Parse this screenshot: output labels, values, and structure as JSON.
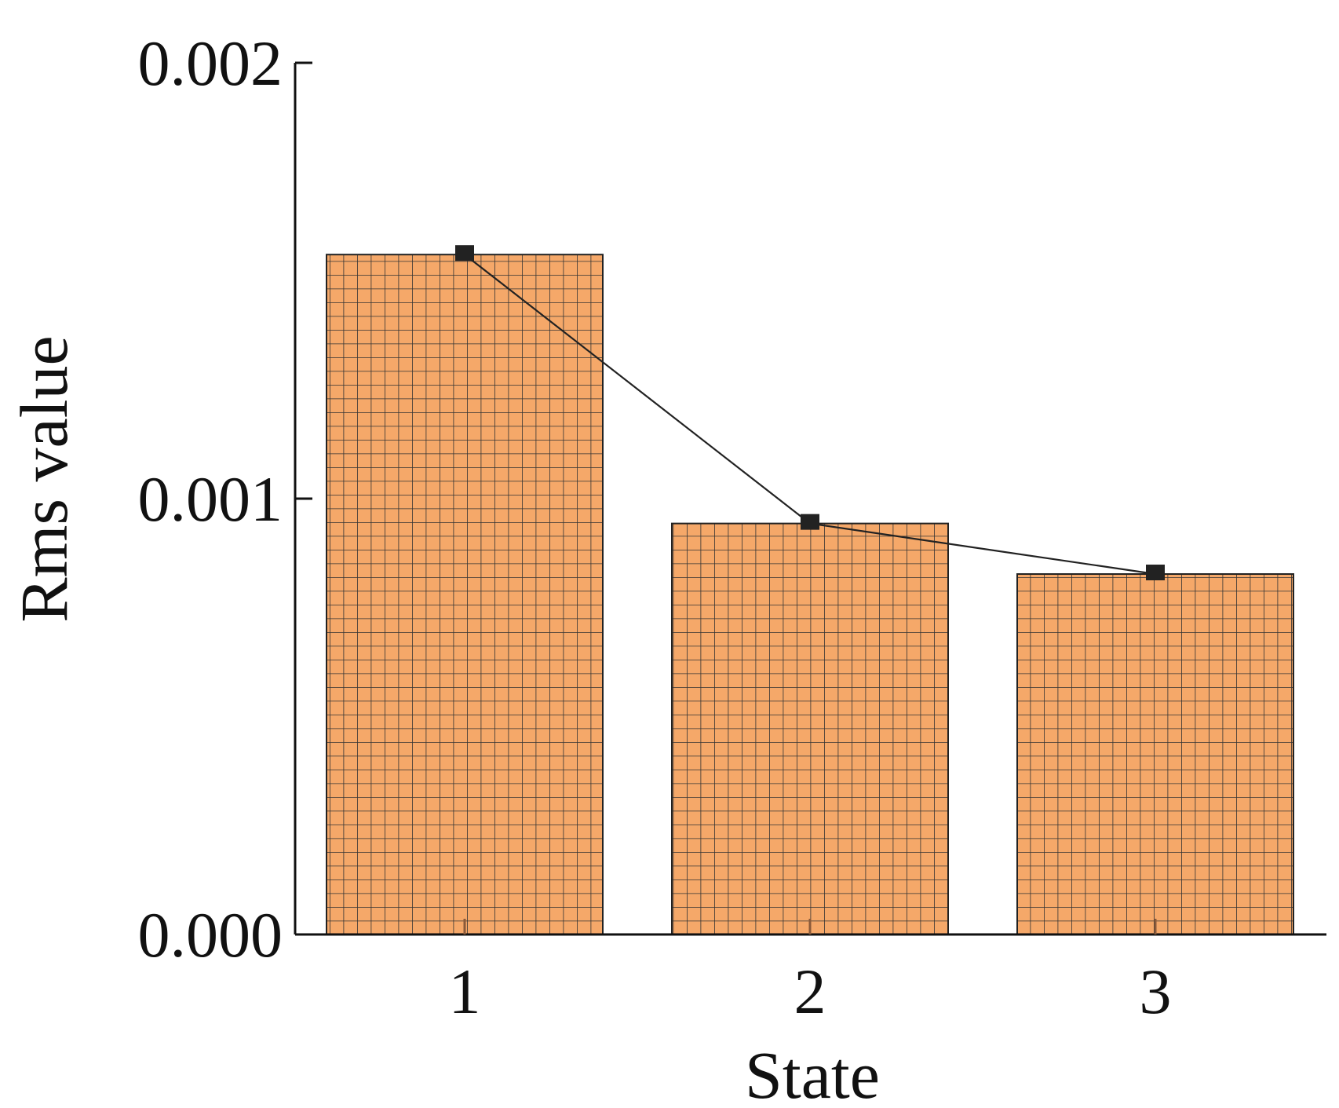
{
  "chart_data": {
    "type": "bar",
    "title": "",
    "xlabel": "State",
    "ylabel": "Rms value",
    "categories": [
      "1",
      "2",
      "3"
    ],
    "values": [
      0.00156,
      0.000943,
      0.000827
    ],
    "line_overlay": true,
    "marker": "square",
    "ylim": [
      0,
      0.002
    ],
    "yticks": [
      "0.000",
      "0.001",
      "0.002"
    ],
    "grid": false,
    "legend": "none",
    "bar_color": "#F5A869",
    "hatch": "grid",
    "hatch_color": "#333333",
    "line_color": "#222222"
  }
}
